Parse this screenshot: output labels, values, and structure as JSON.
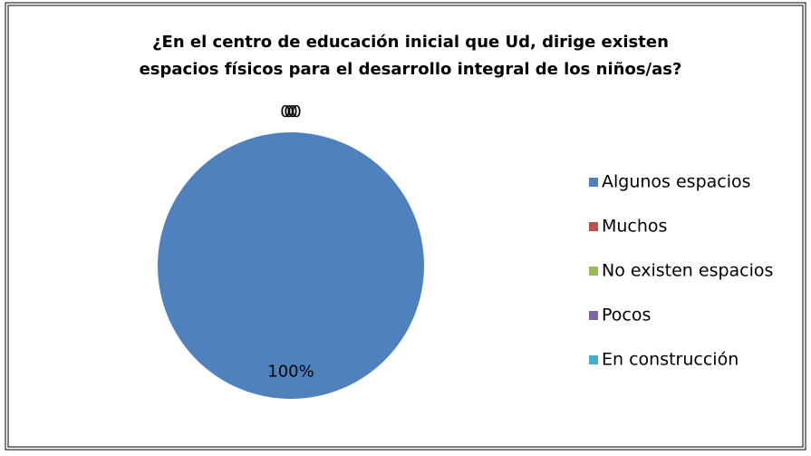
{
  "chart_data": {
    "type": "pie",
    "title": [
      "¿En el centro de educación inicial que Ud, dirige existen",
      "espacios físicos para el desarrollo integral de los niños/as?"
    ],
    "categories": [
      "Algunos espacios",
      "Muchos",
      "No existen espacios",
      "Pocos",
      "En construcción"
    ],
    "values": [
      100,
      0,
      0,
      0,
      0
    ],
    "value_labels": [
      "100%",
      "0",
      "0",
      "0",
      "0"
    ],
    "colors": [
      "#4f81bd",
      "#c0504d",
      "#9bbb59",
      "#8064a2",
      "#4bacc6"
    ],
    "legend": "right"
  }
}
